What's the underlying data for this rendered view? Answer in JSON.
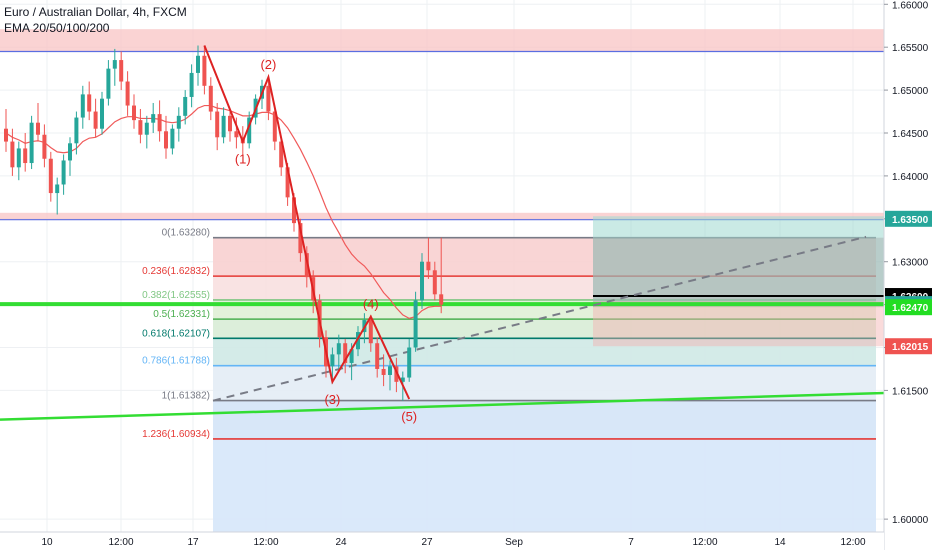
{
  "header": {
    "symbol_line": "Euro / Australian Dollar, 4h, FXCM",
    "indicator_line": "EMA 20/50/100/200"
  },
  "colors": {
    "bull": "#26a69a",
    "bear": "#ef5350",
    "ema": "#f05a5a",
    "grid": "#eef0f3",
    "zone_fill": "#f8c4c4",
    "zone_edge": "#5b6ee1",
    "green_line": "#33dd33",
    "wave": "#dd2222"
  },
  "chart_data": {
    "type": "candlestick",
    "title": "Euro / Australian Dollar, 4h, FXCM",
    "indicator": "EMA 20/50/100/200",
    "x_tick_labels": [
      "10",
      "12:00",
      "17",
      "12:00",
      "24",
      "27",
      "Sep",
      "7",
      "12:00",
      "14",
      "12:00"
    ],
    "y_tick_labels": [
      "1.60000",
      "1.61500",
      "1.62000",
      "1.62500",
      "1.63000",
      "1.63500",
      "1.64000",
      "1.64500",
      "1.65000",
      "1.65500",
      "1.66000"
    ],
    "ylim": [
      1.5985,
      1.6605
    ],
    "price_labels": [
      {
        "text": "1.63500",
        "value": 1.635,
        "color": "#26a69a"
      },
      {
        "text": "1.62600",
        "value": 1.626,
        "color": "#000000"
      },
      {
        "text": "1.62506",
        "value": 1.62506,
        "color": "#26a69a"
      },
      {
        "text": "1.62470",
        "value": 1.6247,
        "color": "#22dd22"
      },
      {
        "text": "1.62015",
        "value": 1.62015,
        "color": "#ef5350"
      }
    ],
    "zones": [
      {
        "low": 1.6545,
        "high": 1.6571
      },
      {
        "low": 1.6349,
        "high": 1.6357
      }
    ],
    "fibonacci": {
      "levels": [
        {
          "label": "0(1.63280)",
          "value": 1.6328,
          "color": "#787b86"
        },
        {
          "label": "0.236(1.62832)",
          "value": 1.62832,
          "color": "#e53935"
        },
        {
          "label": "0.382(1.62555)",
          "value": 1.62555,
          "color": "#81c784"
        },
        {
          "label": "0.5(1.62331)",
          "value": 1.62331,
          "color": "#4caf50"
        },
        {
          "label": "0.618(1.62107)",
          "value": 1.62107,
          "color": "#00796b"
        },
        {
          "label": "0.786(1.61788)",
          "value": 1.61788,
          "color": "#64b5f6"
        },
        {
          "label": "1(1.61382)",
          "value": 1.61382,
          "color": "#787b86"
        },
        {
          "label": "1.236(1.60934)",
          "value": 1.60934,
          "color": "#e53935"
        }
      ]
    },
    "waves": [
      {
        "label": "(1)",
        "x": 37,
        "y": 1.644
      },
      {
        "label": "(2)",
        "x": 41,
        "y": 1.6515
      },
      {
        "label": "(3)",
        "x": 51,
        "y": 1.616
      },
      {
        "label": "(4)",
        "x": 57,
        "y": 1.6236
      },
      {
        "label": "(5)",
        "x": 63,
        "y": 1.614
      }
    ],
    "wave_path": [
      {
        "x": 31,
        "y": 1.6552
      },
      {
        "x": 37,
        "y": 1.644
      },
      {
        "x": 41,
        "y": 1.6515
      },
      {
        "x": 51,
        "y": 1.616
      },
      {
        "x": 57,
        "y": 1.6236
      },
      {
        "x": 63,
        "y": 1.614
      }
    ],
    "ohlc": [
      {
        "o": 1.6455,
        "h": 1.6478,
        "l": 1.6428,
        "c": 1.644
      },
      {
        "o": 1.644,
        "h": 1.6455,
        "l": 1.64,
        "c": 1.641
      },
      {
        "o": 1.641,
        "h": 1.644,
        "l": 1.6395,
        "c": 1.6432
      },
      {
        "o": 1.6432,
        "h": 1.645,
        "l": 1.6405,
        "c": 1.6415
      },
      {
        "o": 1.6415,
        "h": 1.647,
        "l": 1.6408,
        "c": 1.6462
      },
      {
        "o": 1.6462,
        "h": 1.6485,
        "l": 1.644,
        "c": 1.6448
      },
      {
        "o": 1.6448,
        "h": 1.646,
        "l": 1.641,
        "c": 1.642
      },
      {
        "o": 1.642,
        "h": 1.6428,
        "l": 1.637,
        "c": 1.638
      },
      {
        "o": 1.638,
        "h": 1.6398,
        "l": 1.6355,
        "c": 1.639
      },
      {
        "o": 1.639,
        "h": 1.6425,
        "l": 1.6378,
        "c": 1.6418
      },
      {
        "o": 1.6418,
        "h": 1.6445,
        "l": 1.64,
        "c": 1.6438
      },
      {
        "o": 1.6438,
        "h": 1.6475,
        "l": 1.6425,
        "c": 1.6468
      },
      {
        "o": 1.6468,
        "h": 1.6505,
        "l": 1.6455,
        "c": 1.6495
      },
      {
        "o": 1.6495,
        "h": 1.651,
        "l": 1.6465,
        "c": 1.6475
      },
      {
        "o": 1.6475,
        "h": 1.649,
        "l": 1.6445,
        "c": 1.6455
      },
      {
        "o": 1.6455,
        "h": 1.6498,
        "l": 1.6448,
        "c": 1.649
      },
      {
        "o": 1.649,
        "h": 1.6535,
        "l": 1.6482,
        "c": 1.6525
      },
      {
        "o": 1.6525,
        "h": 1.6548,
        "l": 1.6505,
        "c": 1.6535
      },
      {
        "o": 1.6535,
        "h": 1.6545,
        "l": 1.65,
        "c": 1.651
      },
      {
        "o": 1.651,
        "h": 1.6522,
        "l": 1.647,
        "c": 1.6482
      },
      {
        "o": 1.6482,
        "h": 1.6495,
        "l": 1.6455,
        "c": 1.6465
      },
      {
        "o": 1.6465,
        "h": 1.6478,
        "l": 1.6438,
        "c": 1.6448
      },
      {
        "o": 1.6448,
        "h": 1.647,
        "l": 1.6432,
        "c": 1.6462
      },
      {
        "o": 1.6462,
        "h": 1.6485,
        "l": 1.645,
        "c": 1.6472
      },
      {
        "o": 1.6472,
        "h": 1.6488,
        "l": 1.644,
        "c": 1.6452
      },
      {
        "o": 1.6452,
        "h": 1.647,
        "l": 1.642,
        "c": 1.6432
      },
      {
        "o": 1.6432,
        "h": 1.646,
        "l": 1.6425,
        "c": 1.6455
      },
      {
        "o": 1.6455,
        "h": 1.648,
        "l": 1.644,
        "c": 1.647
      },
      {
        "o": 1.647,
        "h": 1.65,
        "l": 1.646,
        "c": 1.6492
      },
      {
        "o": 1.6492,
        "h": 1.653,
        "l": 1.648,
        "c": 1.652
      },
      {
        "o": 1.652,
        "h": 1.6552,
        "l": 1.6505,
        "c": 1.654
      },
      {
        "o": 1.654,
        "h": 1.6552,
        "l": 1.6495,
        "c": 1.6505
      },
      {
        "o": 1.6505,
        "h": 1.6515,
        "l": 1.6465,
        "c": 1.6475
      },
      {
        "o": 1.6475,
        "h": 1.6485,
        "l": 1.643,
        "c": 1.6445
      },
      {
        "o": 1.6445,
        "h": 1.648,
        "l": 1.6438,
        "c": 1.647
      },
      {
        "o": 1.647,
        "h": 1.6478,
        "l": 1.644,
        "c": 1.6452
      },
      {
        "o": 1.6452,
        "h": 1.6468,
        "l": 1.6432,
        "c": 1.6445
      },
      {
        "o": 1.6445,
        "h": 1.6458,
        "l": 1.6425,
        "c": 1.6438
      },
      {
        "o": 1.6438,
        "h": 1.6475,
        "l": 1.6432,
        "c": 1.6468
      },
      {
        "o": 1.6468,
        "h": 1.6495,
        "l": 1.646,
        "c": 1.649
      },
      {
        "o": 1.649,
        "h": 1.6512,
        "l": 1.6478,
        "c": 1.6505
      },
      {
        "o": 1.6505,
        "h": 1.6516,
        "l": 1.6465,
        "c": 1.6475
      },
      {
        "o": 1.6475,
        "h": 1.6482,
        "l": 1.643,
        "c": 1.644
      },
      {
        "o": 1.644,
        "h": 1.6445,
        "l": 1.64,
        "c": 1.641
      },
      {
        "o": 1.641,
        "h": 1.6415,
        "l": 1.6365,
        "c": 1.6375
      },
      {
        "o": 1.6375,
        "h": 1.638,
        "l": 1.6335,
        "c": 1.6345
      },
      {
        "o": 1.6345,
        "h": 1.635,
        "l": 1.63,
        "c": 1.631
      },
      {
        "o": 1.631,
        "h": 1.6318,
        "l": 1.627,
        "c": 1.6282
      },
      {
        "o": 1.6282,
        "h": 1.629,
        "l": 1.624,
        "c": 1.6255
      },
      {
        "o": 1.6255,
        "h": 1.6262,
        "l": 1.62,
        "c": 1.6212
      },
      {
        "o": 1.6212,
        "h": 1.622,
        "l": 1.6165,
        "c": 1.6178
      },
      {
        "o": 1.6178,
        "h": 1.62,
        "l": 1.6158,
        "c": 1.6192
      },
      {
        "o": 1.6192,
        "h": 1.6215,
        "l": 1.6175,
        "c": 1.6205
      },
      {
        "o": 1.6205,
        "h": 1.621,
        "l": 1.617,
        "c": 1.6182
      },
      {
        "o": 1.6182,
        "h": 1.6205,
        "l": 1.6162,
        "c": 1.6198
      },
      {
        "o": 1.6198,
        "h": 1.6225,
        "l": 1.619,
        "c": 1.6218
      },
      {
        "o": 1.6218,
        "h": 1.624,
        "l": 1.6205,
        "c": 1.6232
      },
      {
        "o": 1.6232,
        "h": 1.6238,
        "l": 1.6195,
        "c": 1.6205
      },
      {
        "o": 1.6205,
        "h": 1.6212,
        "l": 1.6165,
        "c": 1.6175
      },
      {
        "o": 1.6175,
        "h": 1.6192,
        "l": 1.6155,
        "c": 1.6168
      },
      {
        "o": 1.6168,
        "h": 1.6185,
        "l": 1.615,
        "c": 1.6178
      },
      {
        "o": 1.6178,
        "h": 1.6188,
        "l": 1.6148,
        "c": 1.616
      },
      {
        "o": 1.616,
        "h": 1.6172,
        "l": 1.6138,
        "c": 1.6165
      },
      {
        "o": 1.6165,
        "h": 1.621,
        "l": 1.616,
        "c": 1.62
      },
      {
        "o": 1.62,
        "h": 1.6265,
        "l": 1.6195,
        "c": 1.6255
      },
      {
        "o": 1.6255,
        "h": 1.631,
        "l": 1.6245,
        "c": 1.63
      },
      {
        "o": 1.63,
        "h": 1.6328,
        "l": 1.628,
        "c": 1.629
      },
      {
        "o": 1.629,
        "h": 1.63,
        "l": 1.6255,
        "c": 1.6262
      },
      {
        "o": 1.6262,
        "h": 1.6328,
        "l": 1.624,
        "c": 1.625
      }
    ],
    "ema": [
      1.645,
      1.6445,
      1.6442,
      1.6438,
      1.644,
      1.6441,
      1.6439,
      1.6433,
      1.6428,
      1.6427,
      1.6428,
      1.6432,
      1.644,
      1.6444,
      1.6445,
      1.6449,
      1.6456,
      1.6463,
      1.6467,
      1.6469,
      1.6469,
      1.6467,
      1.6467,
      1.6467,
      1.6466,
      1.6463,
      1.6462,
      1.6463,
      1.6466,
      1.6472,
      1.6479,
      1.6482,
      1.6482,
      1.6479,
      1.6478,
      1.6476,
      1.6473,
      1.647,
      1.647,
      1.6472,
      1.6474,
      1.6474,
      1.6471,
      1.6465,
      1.6456,
      1.6444,
      1.6431,
      1.6416,
      1.64,
      1.6382,
      1.6363,
      1.6347,
      1.6334,
      1.632,
      1.6309,
      1.6301,
      1.6295,
      1.6286,
      1.6275,
      1.6264,
      1.6256,
      1.6246,
      1.6238,
      1.6234,
      1.6236,
      1.6243,
      1.6247,
      1.6248,
      1.6248
    ]
  }
}
